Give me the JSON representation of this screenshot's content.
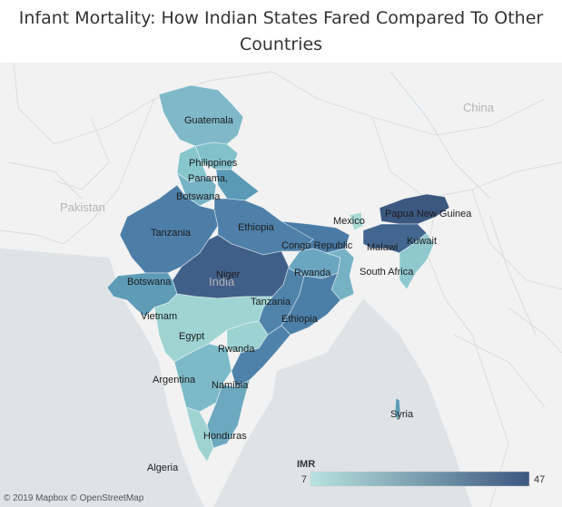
{
  "title": "Infant Mortality: How Indian States Fared Compared To Other Countries",
  "country_labels": {
    "china": "China",
    "pakistan": "Pakistan",
    "india": "India"
  },
  "legend": {
    "title": "IMR",
    "min": "7",
    "max": "47",
    "color_low": "#b8e3df",
    "color_high": "#3b5880"
  },
  "attribution": "© 2019 Mapbox © OpenStreetMap",
  "states": {
    "jammu_kashmir": "Guatemala",
    "himachal": "Philippines",
    "punjab": "Panama,",
    "haryana": "Botswana",
    "uttar_pradesh": "Ethiopia",
    "rajasthan": "Tanzania",
    "bihar": "Congo Republic",
    "jharkhand": "Rwanda",
    "madhya_pradesh": "Niger",
    "chhattisgarh": "Tanzania",
    "odisha": "Ethiopia",
    "gujarat": "Botswana",
    "maharashtra_region": "Vietnam",
    "telangana_region": "Egypt",
    "andhra_pradesh": "Rwanda",
    "karnataka": "Argentina",
    "tamil_nadu": "Namibia",
    "kerala": "Honduras",
    "west_bengal": "South Africa",
    "sikkim": "Mexico",
    "arunachal": "Papua New Guinea",
    "assam": "Malawi",
    "northeast": "Kuwait",
    "andaman": "Syria",
    "goa_region": "Algeria"
  }
}
